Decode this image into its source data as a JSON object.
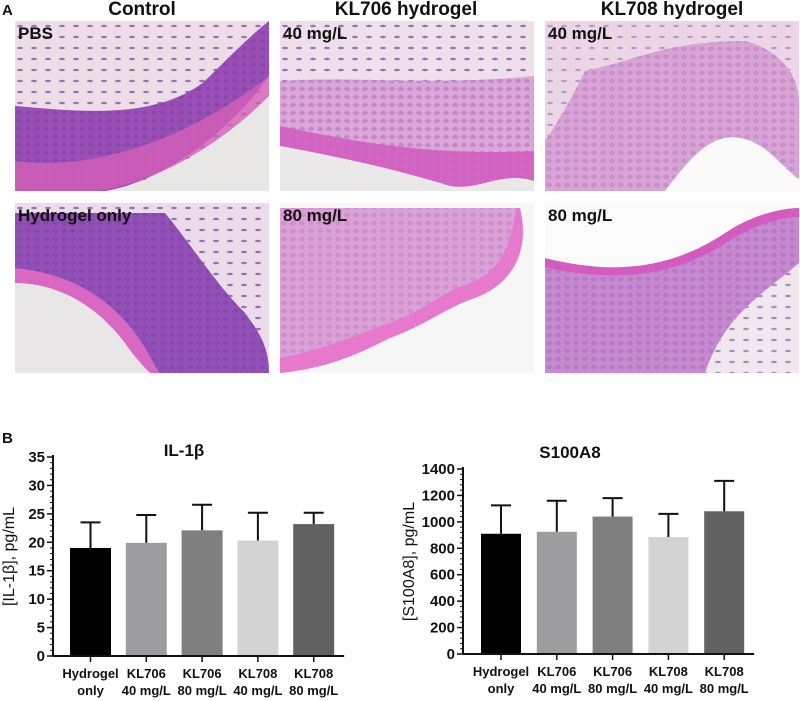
{
  "panel_a": {
    "letter": "A",
    "columns": [
      {
        "title": "Control"
      },
      {
        "title": "KL706 hydrogel"
      },
      {
        "title": "KL708 hydrogel"
      }
    ],
    "images": [
      {
        "label": "PBS",
        "stain": "H&E"
      },
      {
        "label": "40 mg/L",
        "stain": "H&E"
      },
      {
        "label": "40 mg/L",
        "stain": "H&E"
      },
      {
        "label": "Hydrogel only",
        "stain": "H&E"
      },
      {
        "label": "80 mg/L",
        "stain": "H&E"
      },
      {
        "label": "80 mg/L",
        "stain": "H&E"
      }
    ]
  },
  "panel_b": {
    "letter": "B"
  },
  "chart_data": [
    {
      "type": "bar",
      "title": "IL-1β",
      "xlabel": "",
      "ylabel": "[IL-1β], pg/mL",
      "ylim": [
        0,
        35
      ],
      "yticks": [
        0,
        5,
        10,
        15,
        20,
        25,
        30,
        35
      ],
      "categories": [
        "Hydrogel only",
        "KL706 40 mg/L",
        "KL706 80 mg/L",
        "KL708 40 mg/L",
        "KL708 80 mg/L"
      ],
      "category_lines": [
        [
          "Hydrogel",
          "only"
        ],
        [
          "KL706",
          "40 mg/L"
        ],
        [
          "KL706",
          "80 mg/L"
        ],
        [
          "KL708",
          "40 mg/L"
        ],
        [
          "KL708",
          "80 mg/L"
        ]
      ],
      "values": [
        19.0,
        19.9,
        22.1,
        20.3,
        23.2
      ],
      "error_upper": [
        23.5,
        24.8,
        26.6,
        25.2,
        25.2
      ],
      "colors": [
        "#000000",
        "#9d9da0",
        "#7f7f7f",
        "#d3d3d3",
        "#616161"
      ],
      "grid": false,
      "legend": "none"
    },
    {
      "type": "bar",
      "title": "S100A8",
      "xlabel": "",
      "ylabel": "[S100A8], pg/mL",
      "ylim": [
        0,
        1400
      ],
      "yticks": [
        0,
        200,
        400,
        600,
        800,
        1000,
        1200,
        1400
      ],
      "categories": [
        "Hydrogel only",
        "KL706 40 mg/L",
        "KL706 80 mg/L",
        "KL708 40 mg/L",
        "KL708 80 mg/L"
      ],
      "category_lines": [
        [
          "Hydrogel",
          "only"
        ],
        [
          "KL706",
          "40 mg/L"
        ],
        [
          "KL706",
          "80 mg/L"
        ],
        [
          "KL708",
          "40 mg/L"
        ],
        [
          "KL708",
          "80 mg/L"
        ]
      ],
      "values": [
        910,
        925,
        1040,
        885,
        1080
      ],
      "error_upper": [
        1125,
        1160,
        1180,
        1060,
        1310
      ],
      "colors": [
        "#000000",
        "#9d9da0",
        "#7f7f7f",
        "#d3d3d3",
        "#616161"
      ],
      "grid": false,
      "legend": "none"
    }
  ]
}
